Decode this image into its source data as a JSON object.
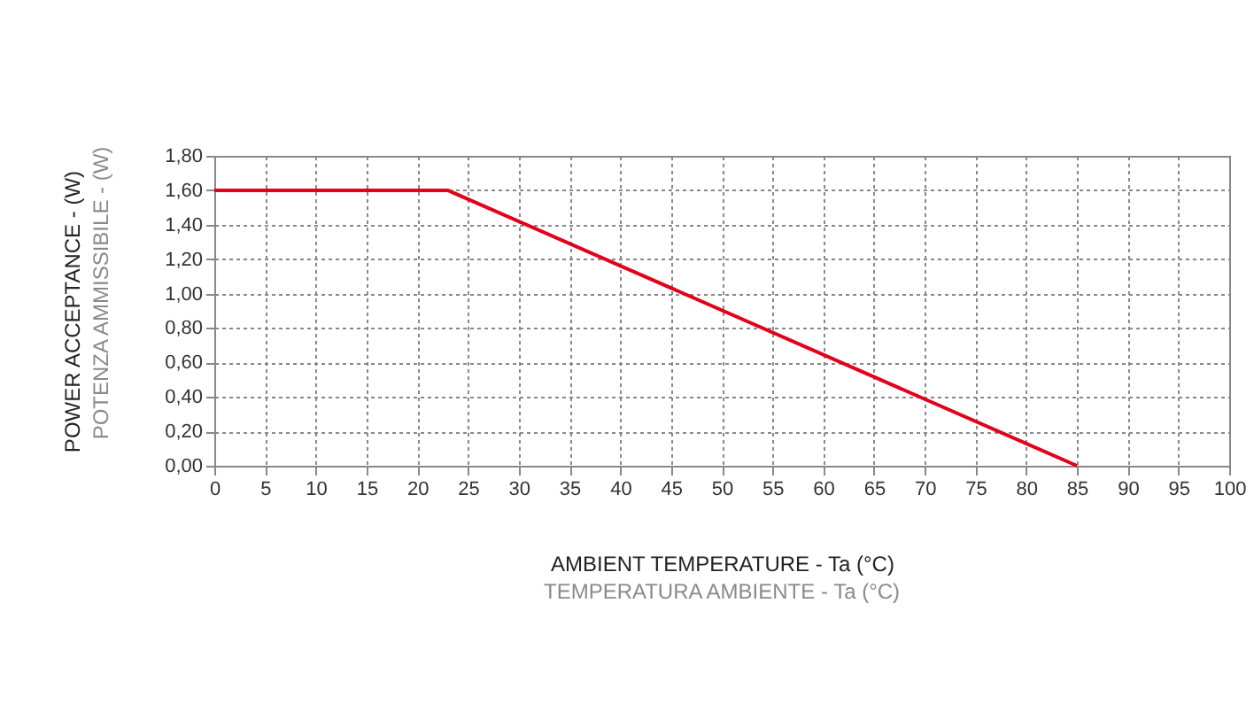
{
  "chart_data": {
    "type": "line",
    "xlabel": "AMBIENT TEMPERATURE - Ta (°C)",
    "ylabel": "POWER ACCEPTANCE - (W)",
    "annotations": [
      "TEMPERATURA AMBIENTE - Ta (°C)",
      "POTENZA AMMISSIBILE - (W)"
    ],
    "x": [
      0,
      23,
      85
    ],
    "series": [
      {
        "color": "#e2001a",
        "values": [
          1.6,
          1.6,
          0
        ]
      }
    ],
    "xlim": [
      0,
      100
    ],
    "xticks": [
      0,
      5,
      10,
      15,
      20,
      25,
      30,
      35,
      40,
      45,
      50,
      55,
      60,
      65,
      70,
      75,
      80,
      85,
      90,
      95,
      100
    ],
    "ylim": [
      0,
      1.8
    ],
    "yticks": [
      {
        "value": 0,
        "label": "0,00"
      },
      {
        "value": 0.2,
        "label": "0,20"
      },
      {
        "value": 0.4,
        "label": "0,40"
      },
      {
        "value": 0.6,
        "label": "0,60"
      },
      {
        "value": 0.8,
        "label": "0,80"
      },
      {
        "value": 1,
        "label": "1,00"
      },
      {
        "value": 1.2,
        "label": "1,20"
      },
      {
        "value": 1.4,
        "label": "1,40"
      },
      {
        "value": 1.6,
        "label": "1,60"
      },
      {
        "value": 1.8,
        "label": "1,80"
      }
    ],
    "grid": true,
    "line_style": "solid",
    "marker": "none"
  }
}
